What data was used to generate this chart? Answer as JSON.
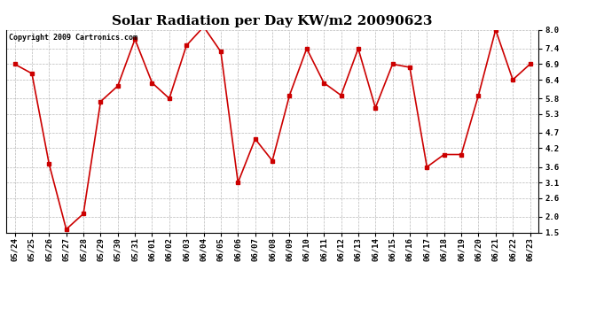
{
  "title": "Solar Radiation per Day KW/m2 20090623",
  "copyright": "Copyright 2009 Cartronics.com",
  "dates": [
    "05/24",
    "05/25",
    "05/26",
    "05/27",
    "05/28",
    "05/29",
    "05/30",
    "05/31",
    "06/01",
    "06/02",
    "06/03",
    "06/04",
    "06/05",
    "06/06",
    "06/07",
    "06/08",
    "06/09",
    "06/10",
    "06/11",
    "06/12",
    "06/13",
    "06/14",
    "06/15",
    "06/16",
    "06/17",
    "06/18",
    "06/19",
    "06/20",
    "06/21",
    "06/22",
    "06/23"
  ],
  "values": [
    6.9,
    6.6,
    3.7,
    1.6,
    2.1,
    5.7,
    6.2,
    7.7,
    6.3,
    5.8,
    7.5,
    8.1,
    7.3,
    3.1,
    4.5,
    3.8,
    5.9,
    7.4,
    6.3,
    5.9,
    7.4,
    5.5,
    6.9,
    6.8,
    3.6,
    4.0,
    4.0,
    5.9,
    8.0,
    6.4,
    6.9
  ],
  "line_color": "#cc0000",
  "marker": "s",
  "marker_size": 2.5,
  "bg_color": "#ffffff",
  "grid_color": "#b0b0b0",
  "ylim_min": 1.5,
  "ylim_max": 8.0,
  "yticks": [
    1.5,
    2.0,
    2.6,
    3.1,
    3.6,
    4.2,
    4.7,
    5.3,
    5.8,
    6.4,
    6.9,
    7.4,
    8.0
  ],
  "title_fontsize": 11,
  "copyright_fontsize": 6,
  "tick_fontsize": 6.5,
  "fig_bg": "#ffffff",
  "linewidth": 1.2
}
